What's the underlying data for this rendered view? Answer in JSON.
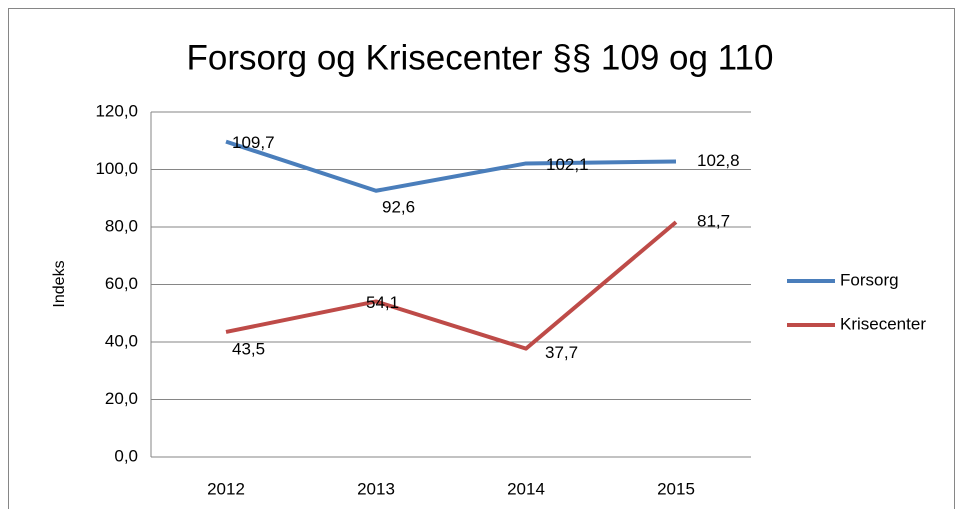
{
  "chart_data": {
    "type": "line",
    "title": "Forsorg og Krisecenter §§ 109 og 110",
    "ylabel": "Indeks",
    "categories": [
      "2012",
      "2013",
      "2014",
      "2015"
    ],
    "series": [
      {
        "name": "Forsorg",
        "color": "#4a7ebb",
        "values": [
          109.7,
          92.6,
          102.1,
          102.8
        ],
        "value_labels": [
          "109,7",
          "92,6",
          "102,1",
          "102,8"
        ]
      },
      {
        "name": "Krisecenter",
        "color": "#be4b48",
        "values": [
          43.5,
          54.1,
          37.7,
          81.7
        ],
        "value_labels": [
          "43,5",
          "54,1",
          "37,7",
          "81,7"
        ]
      }
    ],
    "ylim": [
      0,
      120
    ],
    "yticks": [
      {
        "value": 0,
        "label": "0,0"
      },
      {
        "value": 20,
        "label": "20,0"
      },
      {
        "value": 40,
        "label": "40,0"
      },
      {
        "value": 60,
        "label": "60,0"
      },
      {
        "value": 80,
        "label": "80,0"
      },
      {
        "value": 100,
        "label": "100,0"
      },
      {
        "value": 120,
        "label": "120,0"
      }
    ],
    "grid": true,
    "legend": "right"
  }
}
